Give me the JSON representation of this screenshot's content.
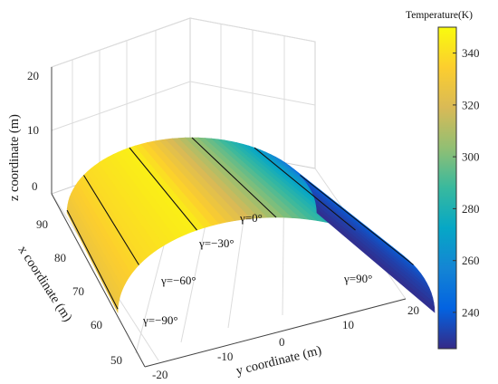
{
  "chart_data": {
    "type": "surface",
    "xlabel": "x coordinate (m)",
    "ylabel": "y coordinate (m)",
    "zlabel": "z coordinate (m)",
    "x_ticks": [
      50,
      60,
      70,
      80,
      90
    ],
    "y_ticks": [
      -20,
      -10,
      0,
      10,
      20
    ],
    "z_ticks": [
      0,
      10,
      20
    ],
    "xlim": [
      50,
      95
    ],
    "ylim": [
      -20,
      20
    ],
    "zlim": [
      0,
      20
    ],
    "grid": true,
    "colorbar": {
      "title": "Temperature(K)",
      "ticks": [
        240,
        260,
        280,
        300,
        320,
        340
      ],
      "range": [
        226,
        350
      ],
      "colormap": "parula"
    },
    "temperature_profile": [
      {
        "gamma_deg": -90,
        "T": 326
      },
      {
        "gamma_deg": -60,
        "T": 338
      },
      {
        "gamma_deg": -30,
        "T": 346
      },
      {
        "gamma_deg": 0,
        "T": 305
      },
      {
        "gamma_deg": 30,
        "T": 270
      },
      {
        "gamma_deg": 60,
        "T": 240
      },
      {
        "gamma_deg": 90,
        "T": 227
      }
    ],
    "annotations": [
      "γ=−90°",
      "γ=−60°",
      "γ=−30°",
      "γ=0°",
      "γ=90°"
    ]
  }
}
